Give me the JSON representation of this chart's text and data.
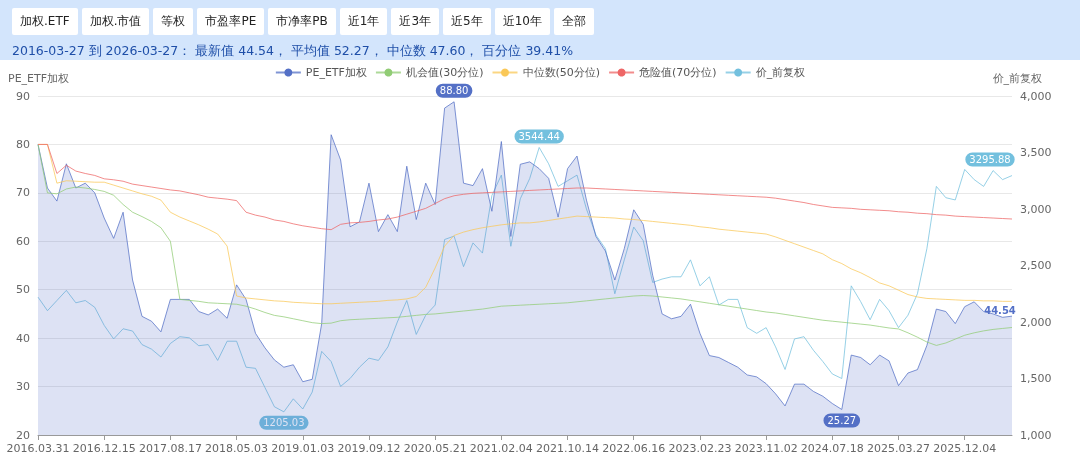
{
  "chart_data": {
    "type": "line",
    "subtitle": "2016-03-27 到 2026-03-27： 最新值 44.54， 平均值 52.27， 中位数 47.60， 百分位 39.41%",
    "annotations": [
      "加权.ETF",
      "加权.市值",
      "等权",
      "市盈率PE",
      "市净率PB",
      "近1年",
      "近3年",
      "近5年",
      "近10年",
      "全部"
    ],
    "ylabel": "PE_ETF加权",
    "y2label": "价_前复权",
    "categories": [
      "2016.03.31",
      null,
      null,
      null,
      null,
      null,
      null,
      "2016.12.15",
      null,
      null,
      null,
      null,
      null,
      null,
      "2017.08.17",
      null,
      null,
      null,
      null,
      null,
      null,
      "2018.05.03",
      null,
      null,
      null,
      null,
      null,
      null,
      "2019.01.03",
      null,
      null,
      null,
      null,
      null,
      null,
      "2019.09.12",
      null,
      null,
      null,
      null,
      null,
      null,
      "2020.05.21",
      null,
      null,
      null,
      null,
      null,
      null,
      "2021.02.04",
      null,
      null,
      null,
      null,
      null,
      null,
      "2021.10.14",
      null,
      null,
      null,
      null,
      null,
      null,
      "2022.06.16",
      null,
      null,
      null,
      null,
      null,
      null,
      "2023.02.23",
      null,
      null,
      null,
      null,
      null,
      null,
      "2023.11.02",
      null,
      null,
      null,
      null,
      null,
      null,
      "2024.07.18",
      null,
      null,
      null,
      null,
      null,
      null,
      "2025.03.27",
      null,
      null,
      null,
      null,
      null,
      null,
      "2025.12.04",
      null,
      null,
      null,
      null,
      null
    ],
    "ylim": [
      20,
      90
    ],
    "yticks": [
      20,
      30,
      40,
      50,
      60,
      70,
      80,
      90
    ],
    "y2lim": [
      1000,
      4000
    ],
    "y2ticks": [
      {
        "value": 1000,
        "label": "1,000"
      },
      {
        "value": 1500,
        "label": "1,500"
      },
      {
        "value": 2000,
        "label": "2,000"
      },
      {
        "value": 2500,
        "label": "2,500"
      },
      {
        "value": 3000,
        "label": "3,000"
      },
      {
        "value": 3500,
        "label": "3,500"
      },
      {
        "value": 4000,
        "label": "4,000"
      }
    ],
    "grid": "y",
    "legend": "top",
    "marker": "none",
    "line_style": "solid",
    "series": [
      {
        "name": "PE_ETF加权",
        "type": "area",
        "color": "#5470c6",
        "values": [
          80,
          71,
          68.3,
          76,
          71,
          72,
          70,
          64.8,
          60.6,
          66,
          52,
          44.5,
          43.5,
          41.3,
          48,
          48,
          48,
          45.5,
          44.8,
          46,
          44.1,
          51,
          48,
          41,
          38,
          35.5,
          34,
          34.5,
          31,
          31.5,
          43,
          82,
          76.8,
          63,
          64,
          72,
          62,
          65.5,
          62,
          75.5,
          64.5,
          72,
          67.6,
          87.5,
          88.8,
          72,
          71.5,
          75,
          66.2,
          80.6,
          61,
          75.9,
          76.4,
          75,
          73,
          65,
          75,
          77.6,
          68.5,
          61,
          58,
          52,
          58.5,
          66.5,
          63.5,
          53,
          45,
          44,
          44.5,
          47,
          41,
          36.4,
          36,
          35,
          34,
          32.4,
          32,
          30.6,
          28.5,
          26,
          30.5,
          30.5,
          29,
          28,
          26.5,
          25.27,
          36.5,
          36,
          34.5,
          36.5,
          35.3,
          30.2,
          32.8,
          33.5,
          38.5,
          46,
          45.5,
          43,
          46.5,
          47.5,
          45.5,
          45,
          44.3,
          44.54
        ],
        "value_labels": [
          null,
          null,
          null,
          null,
          null,
          null,
          null,
          null,
          null,
          null,
          null,
          null,
          null,
          null,
          null,
          null,
          null,
          null,
          null,
          null,
          null,
          null,
          null,
          null,
          null,
          null,
          null,
          null,
          null,
          null,
          null,
          null,
          null,
          null,
          null,
          null,
          null,
          null,
          null,
          null,
          null,
          null,
          null,
          null,
          "88.80",
          null,
          null,
          null,
          null,
          null,
          null,
          null,
          null,
          null,
          null,
          null,
          null,
          null,
          null,
          null,
          null,
          null,
          null,
          null,
          null,
          null,
          null,
          null,
          null,
          null,
          null,
          null,
          null,
          null,
          null,
          null,
          null,
          null,
          null,
          null,
          null,
          null,
          null,
          null,
          null,
          "25.27",
          null,
          null,
          null,
          null,
          null,
          null,
          null,
          null,
          null,
          null,
          null,
          null,
          null,
          null,
          null,
          null,
          null,
          "44.54"
        ]
      },
      {
        "name": "机会值(30分位)",
        "color": "#91cc75",
        "values": [
          80,
          70,
          69.8,
          70.8,
          71.2,
          71,
          70.7,
          70.3,
          69.5,
          67.6,
          66,
          65.1,
          64.1,
          62.8,
          60,
          48,
          47.8,
          47.6,
          47.3,
          47.2,
          47.1,
          47,
          46.6,
          46,
          45.3,
          44.7,
          44.4,
          44,
          43.6,
          43.2,
          43,
          43.1,
          43.6,
          43.8,
          43.9,
          44,
          44.1,
          44.2,
          44.3,
          44.5,
          44.7,
          44.9,
          45,
          45.2,
          45.4,
          45.6,
          45.8,
          46,
          46.3,
          46.6,
          46.7,
          46.8,
          46.9,
          47,
          47.1,
          47.2,
          47.3,
          47.5,
          47.7,
          47.9,
          48.1,
          48.3,
          48.5,
          48.7,
          48.8,
          48.7,
          48.5,
          48.3,
          48.1,
          47.8,
          47.5,
          47.2,
          46.9,
          46.6,
          46.3,
          46,
          45.7,
          45.4,
          45.2,
          44.9,
          44.6,
          44.3,
          44,
          43.7,
          43.5,
          43.3,
          43.1,
          42.9,
          42.7,
          42.4,
          42.1,
          41.9,
          41.1,
          40.2,
          39.2,
          38.5,
          39,
          39.8,
          40.6,
          41.1,
          41.5,
          41.8,
          42,
          42.2
        ]
      },
      {
        "name": "中位数(50分位)",
        "color": "#fac858",
        "values": [
          80,
          80,
          72,
          72.5,
          72.4,
          72.3,
          72.2,
          72.2,
          71.6,
          71,
          70.4,
          69.8,
          69.3,
          68.5,
          66,
          65,
          64.2,
          63.4,
          62.5,
          61.5,
          59,
          48.7,
          48.3,
          48.1,
          47.9,
          47.7,
          47.6,
          47.4,
          47.3,
          47.2,
          47.1,
          47.1,
          47.2,
          47.3,
          47.4,
          47.5,
          47.6,
          47.8,
          47.9,
          48.1,
          48.6,
          50.5,
          54.5,
          59,
          61.2,
          61.9,
          62.4,
          62.8,
          63.1,
          63.4,
          63.6,
          63.8,
          63.8,
          64,
          64.3,
          64.6,
          64.9,
          65.2,
          65.1,
          65,
          64.9,
          64.8,
          64.6,
          64.5,
          64.3,
          64.1,
          63.9,
          63.7,
          63.5,
          63.3,
          63,
          62.8,
          62.5,
          62.3,
          62.1,
          61.9,
          61.7,
          61.5,
          60.9,
          60.2,
          59.5,
          58.8,
          58.1,
          57.4,
          56.2,
          55.4,
          54.3,
          53.5,
          52.5,
          51.4,
          50.8,
          49.9,
          49,
          48.5,
          48.2,
          48.1,
          48,
          47.9,
          47.8,
          47.8,
          47.7,
          47.7,
          47.6,
          47.6
        ]
      },
      {
        "name": "危险值(70分位)",
        "color": "#ee6666",
        "values": [
          80,
          80,
          74,
          75.7,
          74.5,
          74,
          73.6,
          72.9,
          72.7,
          72.4,
          71.8,
          71.5,
          71.2,
          70.9,
          70.6,
          70.4,
          70,
          69.6,
          69.1,
          68.9,
          68.7,
          68.4,
          66,
          65.4,
          65,
          64.4,
          64.1,
          63.6,
          63.2,
          62.9,
          62.6,
          62.4,
          63.5,
          63.8,
          63.9,
          64.1,
          64.4,
          64.6,
          65,
          65.6,
          66.2,
          66.8,
          67.8,
          68.8,
          69.4,
          69.7,
          69.9,
          70,
          70.1,
          70.2,
          70.3,
          70.4,
          70.5,
          70.6,
          70.7,
          70.8,
          70.9,
          71,
          71,
          70.9,
          70.8,
          70.7,
          70.6,
          70.5,
          70.4,
          70.3,
          70.2,
          70.1,
          70,
          69.9,
          69.8,
          69.7,
          69.6,
          69.5,
          69.4,
          69.3,
          69.2,
          69.1,
          68.9,
          68.6,
          68.3,
          68,
          67.6,
          67.3,
          67,
          66.9,
          66.8,
          66.6,
          66.5,
          66.4,
          66.3,
          66.1,
          66,
          65.8,
          65.7,
          65.5,
          65.4,
          65.2,
          65.1,
          65,
          64.9,
          64.8,
          64.7,
          64.6
        ]
      },
      {
        "name": "价_前复权",
        "color": "#73c0de",
        "axis": "y2",
        "values": [
          2220,
          2100,
          2190,
          2280,
          2170,
          2190,
          2130,
          1970,
          1850,
          1940,
          1920,
          1800,
          1760,
          1690,
          1810,
          1870,
          1860,
          1790,
          1800,
          1660,
          1830,
          1830,
          1600,
          1590,
          1420,
          1250,
          1205.03,
          1320,
          1230,
          1380,
          1740,
          1650,
          1430,
          1500,
          1600,
          1680,
          1660,
          1780,
          2000,
          2190,
          1890,
          2060,
          2150,
          2730,
          2760,
          2490,
          2700,
          2610,
          3120,
          3300,
          2670,
          3090,
          3270,
          3544.44,
          3400,
          3200,
          3250,
          3300,
          3000,
          2770,
          2650,
          2250,
          2550,
          2840,
          2720,
          2350,
          2380,
          2400,
          2400,
          2550,
          2320,
          2400,
          2150,
          2200,
          2200,
          1950,
          1900,
          1950,
          1780,
          1580,
          1850,
          1870,
          1750,
          1650,
          1540,
          1500,
          2320,
          2180,
          2020,
          2200,
          2100,
          1950,
          2060,
          2250,
          2650,
          3200,
          3100,
          3080,
          3350,
          3260,
          3200,
          3340,
          3260,
          3295.88
        ],
        "value_labels": [
          null,
          null,
          null,
          null,
          null,
          null,
          null,
          null,
          null,
          null,
          null,
          null,
          null,
          null,
          null,
          null,
          null,
          null,
          null,
          null,
          null,
          null,
          null,
          null,
          null,
          null,
          "1205.03",
          null,
          null,
          null,
          null,
          null,
          null,
          null,
          null,
          null,
          null,
          null,
          null,
          null,
          null,
          null,
          null,
          null,
          null,
          null,
          null,
          null,
          null,
          null,
          null,
          null,
          null,
          "3544.44",
          null,
          null,
          null,
          null,
          null,
          null,
          null,
          null,
          null,
          null,
          null,
          null,
          null,
          null,
          null,
          null,
          null,
          null,
          null,
          null,
          null,
          null,
          null,
          null,
          null,
          null,
          null,
          null,
          null,
          null,
          null,
          null,
          null,
          null,
          null,
          null,
          null,
          null,
          null,
          null,
          null,
          null,
          null,
          null,
          null,
          null,
          null,
          null,
          null,
          "3295.88"
        ]
      }
    ]
  }
}
